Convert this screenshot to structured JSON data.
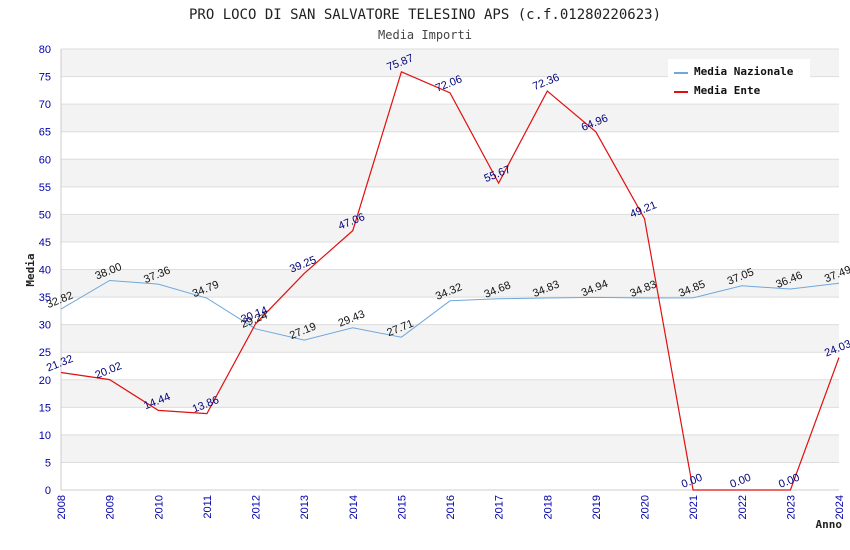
{
  "chart_data": {
    "type": "line",
    "title": "PRO LOCO DI SAN SALVATORE TELESINO APS (c.f.01280220623)",
    "subtitle": "Media Importi",
    "xlabel": "Anno",
    "ylabel": "Media",
    "ylim": [
      0,
      80
    ],
    "y_ticks": [
      "0",
      "5",
      "10",
      "15",
      "20",
      "25",
      "30",
      "35",
      "40",
      "45",
      "50",
      "55",
      "60",
      "65",
      "70",
      "75",
      "80"
    ],
    "categories": [
      "2008",
      "2009",
      "2010",
      "2011",
      "2012",
      "2013",
      "2014",
      "2015",
      "2016",
      "2017",
      "2018",
      "2019",
      "2020",
      "2021",
      "2022",
      "2023",
      "2024"
    ],
    "grid": true,
    "legend_position": "top-right",
    "series": [
      {
        "name": "Media Nazionale",
        "color": "#6fa8dc",
        "values": [
          32.82,
          38.0,
          37.36,
          34.79,
          29.24,
          27.19,
          29.43,
          27.71,
          34.32,
          34.68,
          34.83,
          34.94,
          34.83,
          34.85,
          37.05,
          36.46,
          37.49
        ],
        "labels": [
          "32.82",
          "38.00",
          "37.36",
          "34.79",
          "29.24",
          "27.19",
          "29.43",
          "27.71",
          "34.32",
          "34.68",
          "34.83",
          "34.94",
          "34.83",
          "34.85",
          "37.05",
          "36.46",
          "37.49"
        ]
      },
      {
        "name": "Media Ente",
        "color": "#e01010",
        "values": [
          21.32,
          20.02,
          14.44,
          13.86,
          30.14,
          39.25,
          47.06,
          75.87,
          72.06,
          55.67,
          72.36,
          64.96,
          49.21,
          0.0,
          0.0,
          0.0,
          24.03
        ],
        "labels": [
          "21.32",
          "20.02",
          "14.44",
          "13.86",
          "30.14",
          "39.25",
          "47.06",
          "75.87",
          "72.06",
          "55.67",
          "72.36",
          "64.96",
          "49.21",
          "0.00",
          "0.00",
          "0.00",
          "24.03"
        ]
      }
    ]
  }
}
